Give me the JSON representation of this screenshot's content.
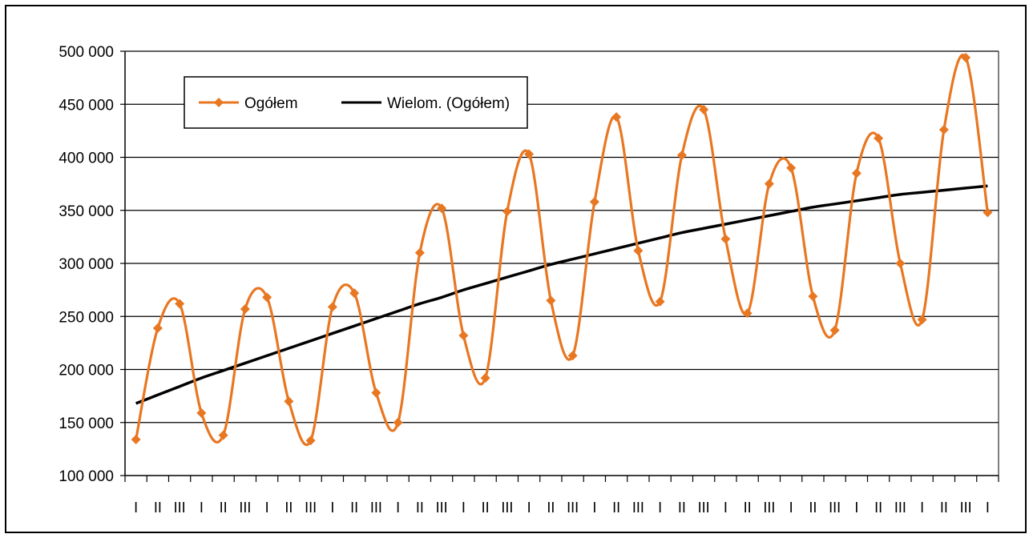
{
  "chart_data": {
    "type": "line",
    "title": "",
    "xlabel": "",
    "ylabel": "",
    "ylim": [
      100000,
      500000
    ],
    "y_ticks": [
      100000,
      150000,
      200000,
      250000,
      300000,
      350000,
      400000,
      450000,
      500000
    ],
    "y_tick_labels": [
      "100 000",
      "150 000",
      "200 000",
      "250 000",
      "300 000",
      "350 000",
      "400 000",
      "450 000",
      "500 000"
    ],
    "grid": true,
    "legend": {
      "placement": "top-left",
      "entries": [
        "Ogółem",
        "Wielom. (Ogółem)"
      ]
    },
    "categories": [
      "I",
      "II",
      "III",
      "I",
      "II",
      "III",
      "I",
      "II",
      "III",
      "I",
      "II",
      "III",
      "I",
      "II",
      "III",
      "I",
      "II",
      "III",
      "I",
      "II",
      "III",
      "I",
      "II",
      "III",
      "I",
      "II",
      "III",
      "I",
      "II",
      "III",
      "I",
      "II",
      "III",
      "I",
      "II",
      "III",
      "I",
      "II",
      "III",
      "I"
    ],
    "series": [
      {
        "name": "Ogółem",
        "color": "#e87722",
        "marker": "diamond",
        "values": [
          134000,
          239000,
          262000,
          159000,
          138000,
          257000,
          268000,
          170000,
          133000,
          259000,
          272000,
          178000,
          150000,
          310000,
          352000,
          232000,
          192000,
          349000,
          403000,
          265000,
          213000,
          358000,
          438000,
          312000,
          264000,
          402000,
          445000,
          323000,
          253000,
          375000,
          390000,
          269000,
          237000,
          385000,
          418000,
          300000,
          247000,
          426000,
          494000,
          348000
        ]
      },
      {
        "name": "Wielom. (Ogółem)",
        "color": "#000000",
        "trendline": "polynomial",
        "values": [
          168000,
          176000,
          184000,
          192000,
          199000,
          206000,
          213000,
          220000,
          227000,
          234000,
          241000,
          248000,
          255000,
          262000,
          268000,
          275000,
          281000,
          287000,
          293000,
          299000,
          304000,
          309000,
          314000,
          319000,
          324000,
          329000,
          333000,
          337000,
          341000,
          345000,
          349000,
          353000,
          356000,
          359000,
          362000,
          365000,
          367000,
          369000,
          371000,
          373000
        ]
      }
    ]
  }
}
